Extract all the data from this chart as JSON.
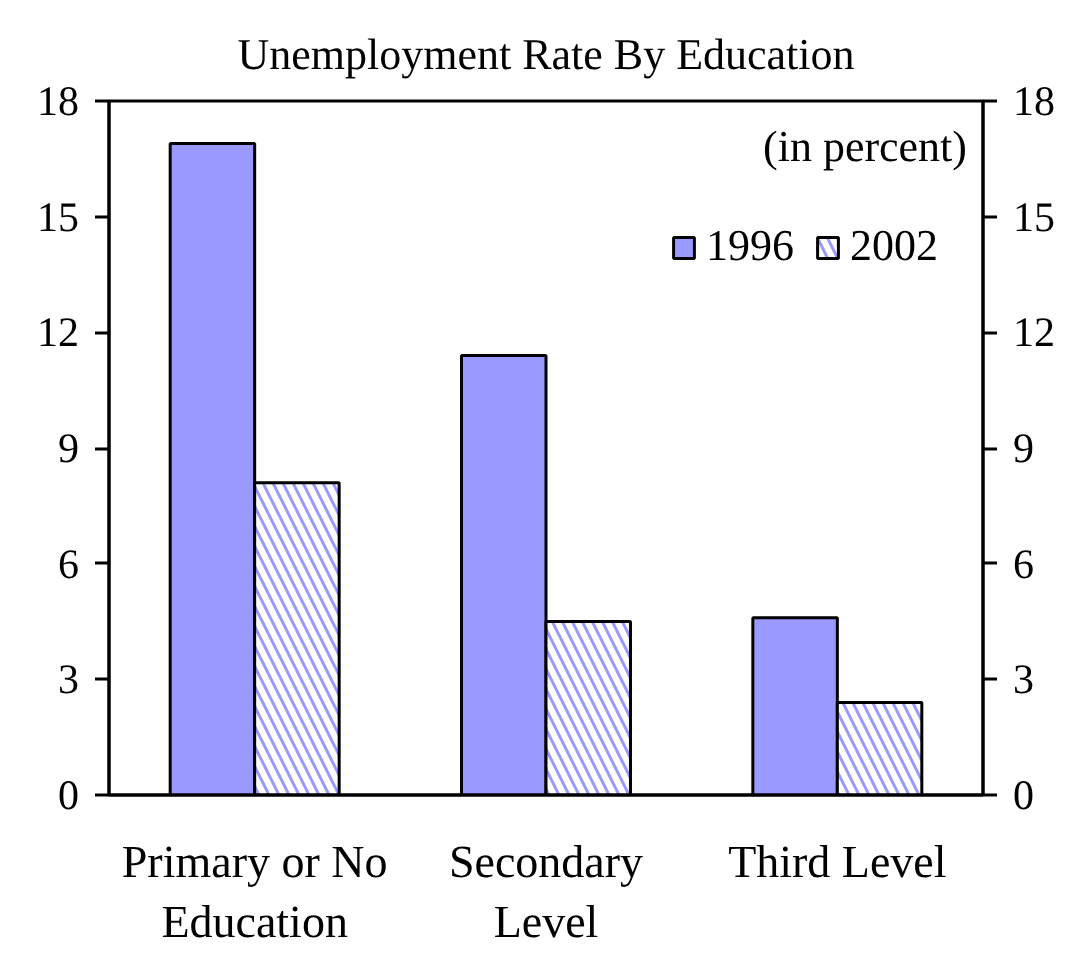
{
  "chart_data": {
    "type": "bar",
    "title": "Unemployment Rate By Education",
    "annotations": [
      "(in percent)"
    ],
    "categories": [
      "Primary or No Education",
      "Secondary Level",
      "Third Level"
    ],
    "series": [
      {
        "name": "1996",
        "color": "#9999ff",
        "values": [
          16.9,
          11.4,
          4.6
        ]
      },
      {
        "name": "2002",
        "color": "#9999ff",
        "values": [
          8.1,
          4.5,
          2.4
        ]
      }
    ],
    "ylim": [
      0,
      18
    ],
    "yticks": [
      0,
      3,
      6,
      9,
      12,
      15,
      18
    ],
    "y2lim": [
      0,
      18
    ],
    "y2ticks": [
      0,
      3,
      6,
      9,
      12,
      15,
      18
    ],
    "legend": "top right",
    "grid": false
  }
}
